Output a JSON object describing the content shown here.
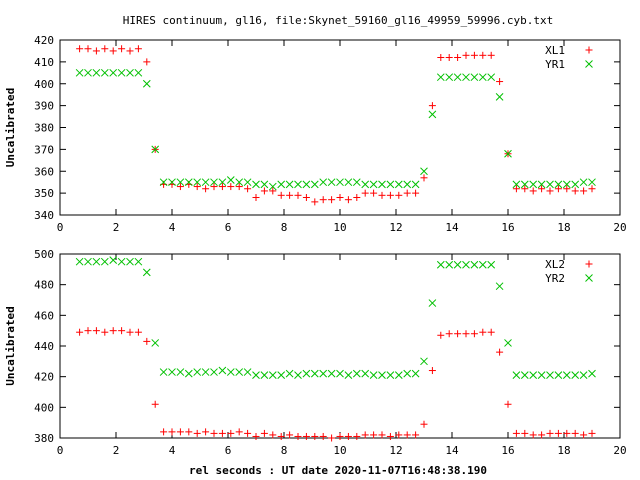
{
  "title": "HIRES continuum, gl16, file:Skynet_59160_gl16_49959_59996.cyb.txt",
  "xlabel": "rel seconds : UT date 2020-11-07T16:48:38.190",
  "chart_data": [
    {
      "type": "scatter",
      "ylabel": "Uncalibrated",
      "xlim": [
        0,
        20
      ],
      "ylim": [
        340,
        420
      ],
      "x_ticks": [
        0,
        2,
        4,
        6,
        8,
        10,
        12,
        14,
        16,
        18,
        20
      ],
      "y_ticks": [
        340,
        350,
        360,
        370,
        380,
        390,
        400,
        410,
        420
      ],
      "legend_position": "top-right",
      "series": [
        {
          "name": "XL1",
          "marker": "plus",
          "color": "#ff0000",
          "points": [
            [
              0.7,
              416
            ],
            [
              1.0,
              416
            ],
            [
              1.3,
              415
            ],
            [
              1.6,
              416
            ],
            [
              1.9,
              415
            ],
            [
              2.2,
              416
            ],
            [
              2.5,
              415
            ],
            [
              2.8,
              416
            ],
            [
              3.1,
              410
            ],
            [
              3.4,
              370
            ],
            [
              3.7,
              354
            ],
            [
              4.0,
              354
            ],
            [
              4.3,
              353
            ],
            [
              4.6,
              354
            ],
            [
              4.9,
              353
            ],
            [
              5.2,
              352
            ],
            [
              5.5,
              353
            ],
            [
              5.8,
              353
            ],
            [
              6.1,
              353
            ],
            [
              6.4,
              353
            ],
            [
              6.7,
              352
            ],
            [
              7.0,
              348
            ],
            [
              7.3,
              351
            ],
            [
              7.6,
              351
            ],
            [
              7.9,
              349
            ],
            [
              8.2,
              349
            ],
            [
              8.5,
              349
            ],
            [
              8.8,
              348
            ],
            [
              9.1,
              346
            ],
            [
              9.4,
              347
            ],
            [
              9.7,
              347
            ],
            [
              10.0,
              348
            ],
            [
              10.3,
              347
            ],
            [
              10.6,
              348
            ],
            [
              10.9,
              350
            ],
            [
              11.2,
              350
            ],
            [
              11.5,
              349
            ],
            [
              11.8,
              349
            ],
            [
              12.1,
              349
            ],
            [
              12.4,
              350
            ],
            [
              12.7,
              350
            ],
            [
              13.0,
              357
            ],
            [
              13.3,
              390
            ],
            [
              13.6,
              412
            ],
            [
              13.9,
              412
            ],
            [
              14.2,
              412
            ],
            [
              14.5,
              413
            ],
            [
              14.8,
              413
            ],
            [
              15.1,
              413
            ],
            [
              15.4,
              413
            ],
            [
              15.7,
              401
            ],
            [
              16.0,
              368
            ],
            [
              16.3,
              352
            ],
            [
              16.6,
              352
            ],
            [
              16.9,
              351
            ],
            [
              17.2,
              352
            ],
            [
              17.5,
              351
            ],
            [
              17.8,
              352
            ],
            [
              18.1,
              352
            ],
            [
              18.4,
              351
            ],
            [
              18.7,
              351
            ],
            [
              19.0,
              352
            ]
          ]
        },
        {
          "name": "YR1",
          "marker": "cross",
          "color": "#00c000",
          "points": [
            [
              0.7,
              405
            ],
            [
              1.0,
              405
            ],
            [
              1.3,
              405
            ],
            [
              1.6,
              405
            ],
            [
              1.9,
              405
            ],
            [
              2.2,
              405
            ],
            [
              2.5,
              405
            ],
            [
              2.8,
              405
            ],
            [
              3.1,
              400
            ],
            [
              3.4,
              370
            ],
            [
              3.7,
              355
            ],
            [
              4.0,
              355
            ],
            [
              4.3,
              355
            ],
            [
              4.6,
              355
            ],
            [
              4.9,
              355
            ],
            [
              5.2,
              355
            ],
            [
              5.5,
              355
            ],
            [
              5.8,
              355
            ],
            [
              6.1,
              356
            ],
            [
              6.4,
              355
            ],
            [
              6.7,
              355
            ],
            [
              7.0,
              354
            ],
            [
              7.3,
              354
            ],
            [
              7.6,
              353
            ],
            [
              7.9,
              354
            ],
            [
              8.2,
              354
            ],
            [
              8.5,
              354
            ],
            [
              8.8,
              354
            ],
            [
              9.1,
              354
            ],
            [
              9.4,
              355
            ],
            [
              9.7,
              355
            ],
            [
              10.0,
              355
            ],
            [
              10.3,
              355
            ],
            [
              10.6,
              355
            ],
            [
              10.9,
              354
            ],
            [
              11.2,
              354
            ],
            [
              11.5,
              354
            ],
            [
              11.8,
              354
            ],
            [
              12.1,
              354
            ],
            [
              12.4,
              354
            ],
            [
              12.7,
              354
            ],
            [
              13.0,
              360
            ],
            [
              13.3,
              386
            ],
            [
              13.6,
              403
            ],
            [
              13.9,
              403
            ],
            [
              14.2,
              403
            ],
            [
              14.5,
              403
            ],
            [
              14.8,
              403
            ],
            [
              15.1,
              403
            ],
            [
              15.4,
              403
            ],
            [
              15.7,
              394
            ],
            [
              16.0,
              368
            ],
            [
              16.3,
              354
            ],
            [
              16.6,
              354
            ],
            [
              16.9,
              354
            ],
            [
              17.2,
              354
            ],
            [
              17.5,
              354
            ],
            [
              17.8,
              354
            ],
            [
              18.1,
              354
            ],
            [
              18.4,
              354
            ],
            [
              18.7,
              355
            ],
            [
              19.0,
              355
            ]
          ]
        }
      ]
    },
    {
      "type": "scatter",
      "ylabel": "Uncalibrated",
      "xlim": [
        0,
        20
      ],
      "ylim": [
        380,
        500
      ],
      "x_ticks": [
        0,
        2,
        4,
        6,
        8,
        10,
        12,
        14,
        16,
        18,
        20
      ],
      "y_ticks": [
        380,
        400,
        420,
        440,
        460,
        480,
        500
      ],
      "legend_position": "top-right",
      "series": [
        {
          "name": "XL2",
          "marker": "plus",
          "color": "#ff0000",
          "points": [
            [
              0.7,
              449
            ],
            [
              1.0,
              450
            ],
            [
              1.3,
              450
            ],
            [
              1.6,
              449
            ],
            [
              1.9,
              450
            ],
            [
              2.2,
              450
            ],
            [
              2.5,
              449
            ],
            [
              2.8,
              449
            ],
            [
              3.1,
              443
            ],
            [
              3.4,
              402
            ],
            [
              3.7,
              384
            ],
            [
              4.0,
              384
            ],
            [
              4.3,
              384
            ],
            [
              4.6,
              384
            ],
            [
              4.9,
              383
            ],
            [
              5.2,
              384
            ],
            [
              5.5,
              383
            ],
            [
              5.8,
              383
            ],
            [
              6.1,
              383
            ],
            [
              6.4,
              384
            ],
            [
              6.7,
              383
            ],
            [
              7.0,
              381
            ],
            [
              7.3,
              383
            ],
            [
              7.6,
              382
            ],
            [
              7.9,
              381
            ],
            [
              8.2,
              382
            ],
            [
              8.5,
              381
            ],
            [
              8.8,
              381
            ],
            [
              9.1,
              381
            ],
            [
              9.4,
              381
            ],
            [
              9.7,
              380
            ],
            [
              10.0,
              381
            ],
            [
              10.3,
              381
            ],
            [
              10.6,
              381
            ],
            [
              10.9,
              382
            ],
            [
              11.2,
              382
            ],
            [
              11.5,
              382
            ],
            [
              11.8,
              381
            ],
            [
              12.1,
              382
            ],
            [
              12.4,
              382
            ],
            [
              12.7,
              382
            ],
            [
              13.0,
              389
            ],
            [
              13.3,
              424
            ],
            [
              13.6,
              447
            ],
            [
              13.9,
              448
            ],
            [
              14.2,
              448
            ],
            [
              14.5,
              448
            ],
            [
              14.8,
              448
            ],
            [
              15.1,
              449
            ],
            [
              15.4,
              449
            ],
            [
              15.7,
              436
            ],
            [
              16.0,
              402
            ],
            [
              16.3,
              383
            ],
            [
              16.6,
              383
            ],
            [
              16.9,
              382
            ],
            [
              17.2,
              382
            ],
            [
              17.5,
              383
            ],
            [
              17.8,
              383
            ],
            [
              18.1,
              383
            ],
            [
              18.4,
              383
            ],
            [
              18.7,
              382
            ],
            [
              19.0,
              383
            ]
          ]
        },
        {
          "name": "YR2",
          "marker": "cross",
          "color": "#00c000",
          "points": [
            [
              0.7,
              495
            ],
            [
              1.0,
              495
            ],
            [
              1.3,
              495
            ],
            [
              1.6,
              495
            ],
            [
              1.9,
              496
            ],
            [
              2.2,
              495
            ],
            [
              2.5,
              495
            ],
            [
              2.8,
              495
            ],
            [
              3.1,
              488
            ],
            [
              3.4,
              442
            ],
            [
              3.7,
              423
            ],
            [
              4.0,
              423
            ],
            [
              4.3,
              423
            ],
            [
              4.6,
              422
            ],
            [
              4.9,
              423
            ],
            [
              5.2,
              423
            ],
            [
              5.5,
              423
            ],
            [
              5.8,
              424
            ],
            [
              6.1,
              423
            ],
            [
              6.4,
              423
            ],
            [
              6.7,
              423
            ],
            [
              7.0,
              421
            ],
            [
              7.3,
              421
            ],
            [
              7.6,
              421
            ],
            [
              7.9,
              421
            ],
            [
              8.2,
              422
            ],
            [
              8.5,
              421
            ],
            [
              8.8,
              422
            ],
            [
              9.1,
              422
            ],
            [
              9.4,
              422
            ],
            [
              9.7,
              422
            ],
            [
              10.0,
              422
            ],
            [
              10.3,
              421
            ],
            [
              10.6,
              422
            ],
            [
              10.9,
              422
            ],
            [
              11.2,
              421
            ],
            [
              11.5,
              421
            ],
            [
              11.8,
              421
            ],
            [
              12.1,
              421
            ],
            [
              12.4,
              422
            ],
            [
              12.7,
              422
            ],
            [
              13.0,
              430
            ],
            [
              13.3,
              468
            ],
            [
              13.6,
              493
            ],
            [
              13.9,
              493
            ],
            [
              14.2,
              493
            ],
            [
              14.5,
              493
            ],
            [
              14.8,
              493
            ],
            [
              15.1,
              493
            ],
            [
              15.4,
              493
            ],
            [
              15.7,
              479
            ],
            [
              16.0,
              442
            ],
            [
              16.3,
              421
            ],
            [
              16.6,
              421
            ],
            [
              16.9,
              421
            ],
            [
              17.2,
              421
            ],
            [
              17.5,
              421
            ],
            [
              17.8,
              421
            ],
            [
              18.1,
              421
            ],
            [
              18.4,
              421
            ],
            [
              18.7,
              421
            ],
            [
              19.0,
              422
            ]
          ]
        }
      ]
    }
  ]
}
